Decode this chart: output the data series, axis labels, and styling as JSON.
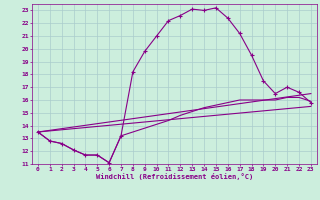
{
  "xlabel": "Windchill (Refroidissement éolien,°C)",
  "xlim": [
    -0.5,
    23.5
  ],
  "ylim": [
    11,
    23.5
  ],
  "xticks": [
    0,
    1,
    2,
    3,
    4,
    5,
    6,
    7,
    8,
    9,
    10,
    11,
    12,
    13,
    14,
    15,
    16,
    17,
    18,
    19,
    20,
    21,
    22,
    23
  ],
  "yticks": [
    11,
    12,
    13,
    14,
    15,
    16,
    17,
    18,
    19,
    20,
    21,
    22,
    23
  ],
  "bg_color": "#cceedd",
  "line_color": "#880088",
  "grid_color": "#aacccc",
  "series1_x": [
    0,
    1,
    2,
    3,
    4,
    5,
    6,
    7,
    8,
    9,
    10,
    11,
    12,
    13,
    14,
    15,
    16,
    17,
    18,
    19,
    20,
    21,
    22,
    23
  ],
  "series1_y": [
    13.5,
    12.8,
    12.6,
    12.1,
    11.7,
    11.7,
    11.1,
    13.2,
    18.2,
    19.8,
    21.0,
    22.2,
    22.6,
    23.1,
    23.0,
    23.2,
    22.4,
    21.2,
    19.5,
    17.5,
    16.5,
    17.0,
    16.6,
    15.8
  ],
  "series2_x": [
    0,
    1,
    2,
    3,
    4,
    5,
    6,
    7,
    8,
    9,
    10,
    11,
    12,
    13,
    14,
    15,
    16,
    17,
    18,
    19,
    20,
    21,
    22,
    23
  ],
  "series2_y": [
    13.5,
    12.8,
    12.6,
    12.1,
    11.7,
    11.7,
    11.1,
    13.2,
    13.5,
    13.8,
    14.1,
    14.4,
    14.8,
    15.1,
    15.4,
    15.6,
    15.8,
    16.0,
    16.0,
    16.0,
    16.0,
    16.2,
    16.2,
    15.9
  ],
  "series3_x": [
    0,
    23
  ],
  "series3_y": [
    13.5,
    16.5
  ],
  "series4_x": [
    0,
    23
  ],
  "series4_y": [
    13.5,
    15.5
  ]
}
